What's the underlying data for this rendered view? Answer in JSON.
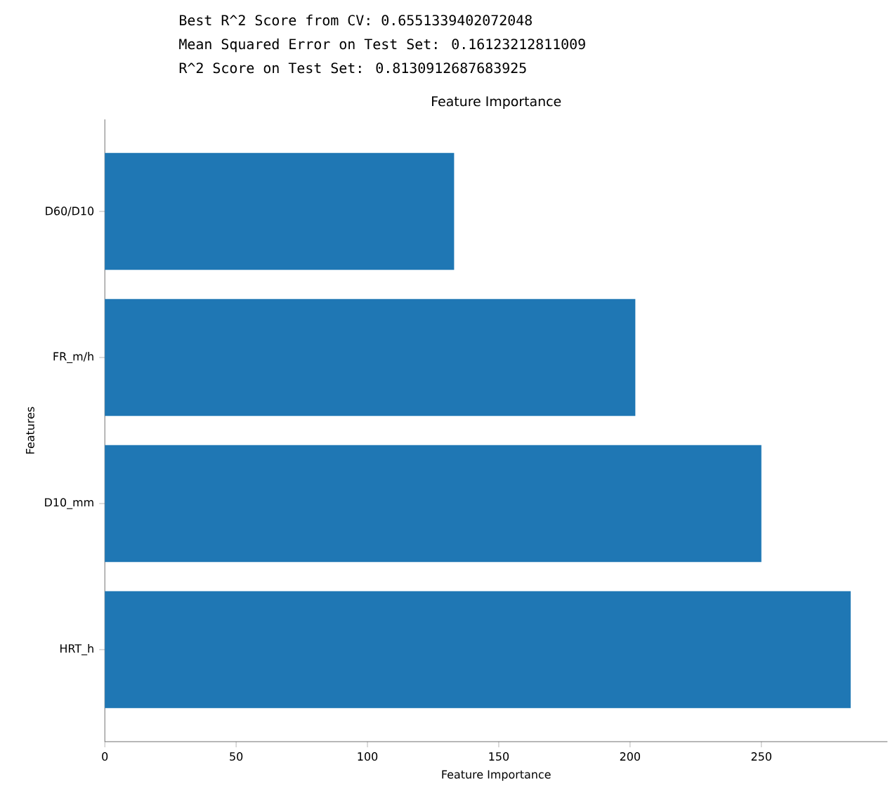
{
  "chart_data": {
    "type": "bar",
    "orientation": "horizontal",
    "title": "Feature Importance",
    "xlabel": "Feature Importance",
    "ylabel": "Features",
    "annotations": [
      "Best R^2 Score from CV: 0.6551339402072048",
      "Mean Squared Error on Test Set: 0.16123212811009",
      "R^2 Score on Test Set: 0.8130912687683925"
    ],
    "categories": [
      "D60/D10",
      "FR_m/h",
      "D10_mm",
      "HRT_h"
    ],
    "values": [
      133,
      202,
      250,
      284
    ],
    "color": "#1f77b4",
    "xlim": [
      0,
      298
    ],
    "xticks": [
      0,
      50,
      100,
      150,
      200,
      250
    ]
  }
}
